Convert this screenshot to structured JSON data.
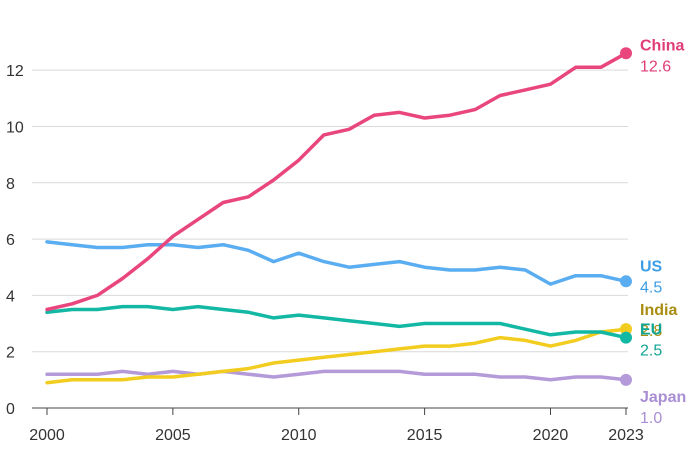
{
  "chart_data": {
    "type": "line",
    "title": "",
    "xlabel": "",
    "ylabel": "",
    "xlim": [
      2000,
      2023
    ],
    "ylim": [
      0,
      13
    ],
    "grid": "horizontal",
    "legend": "end-labels",
    "x": [
      2000,
      2001,
      2002,
      2003,
      2004,
      2005,
      2006,
      2007,
      2008,
      2009,
      2010,
      2011,
      2012,
      2013,
      2014,
      2015,
      2016,
      2017,
      2018,
      2019,
      2020,
      2021,
      2022,
      2023
    ],
    "x_ticks": [
      {
        "v": 2000,
        "label": "2000"
      },
      {
        "v": 2005,
        "label": "2005"
      },
      {
        "v": 2010,
        "label": "2010"
      },
      {
        "v": 2015,
        "label": "2015"
      },
      {
        "v": 2020,
        "label": "2020"
      },
      {
        "v": 2023,
        "label": "2023"
      }
    ],
    "y_ticks": [
      {
        "v": 0,
        "label": "0"
      },
      {
        "v": 2,
        "label": "2"
      },
      {
        "v": 4,
        "label": "4"
      },
      {
        "v": 6,
        "label": "6"
      },
      {
        "v": 8,
        "label": "8"
      },
      {
        "v": 10,
        "label": "10"
      },
      {
        "v": 12,
        "label": "12"
      }
    ],
    "series": [
      {
        "name": "China",
        "end_label": "12.6",
        "color": "#e8467c",
        "values": [
          3.5,
          3.7,
          4.0,
          4.6,
          5.3,
          6.1,
          6.7,
          7.3,
          7.5,
          8.1,
          8.8,
          9.7,
          9.9,
          10.4,
          10.5,
          10.3,
          10.4,
          10.6,
          11.1,
          11.3,
          11.5,
          12.1,
          12.1,
          12.6
        ]
      },
      {
        "name": "US",
        "end_label": "4.5",
        "color": "#5aadf0",
        "values": [
          5.9,
          5.8,
          5.7,
          5.7,
          5.8,
          5.8,
          5.7,
          5.8,
          5.6,
          5.2,
          5.5,
          5.2,
          5.0,
          5.1,
          5.2,
          5.0,
          4.9,
          4.9,
          5.0,
          4.9,
          4.4,
          4.7,
          4.7,
          4.5
        ]
      },
      {
        "name": "India",
        "end_label": "2.8",
        "color": "#f2cd1f",
        "values": [
          0.9,
          1.0,
          1.0,
          1.0,
          1.1,
          1.1,
          1.2,
          1.3,
          1.4,
          1.6,
          1.7,
          1.8,
          1.9,
          2.0,
          2.1,
          2.2,
          2.2,
          2.3,
          2.5,
          2.4,
          2.2,
          2.4,
          2.7,
          2.8
        ]
      },
      {
        "name": "EU",
        "end_label": "2.5",
        "color": "#13b8a5",
        "values": [
          3.4,
          3.5,
          3.5,
          3.6,
          3.6,
          3.5,
          3.6,
          3.5,
          3.4,
          3.2,
          3.3,
          3.2,
          3.1,
          3.0,
          2.9,
          3.0,
          3.0,
          3.0,
          3.0,
          2.8,
          2.6,
          2.7,
          2.7,
          2.5
        ]
      },
      {
        "name": "Japan",
        "end_label": "1.0",
        "color": "#b49ad8",
        "values": [
          1.2,
          1.2,
          1.2,
          1.3,
          1.2,
          1.3,
          1.2,
          1.3,
          1.2,
          1.1,
          1.2,
          1.3,
          1.3,
          1.3,
          1.3,
          1.2,
          1.2,
          1.2,
          1.1,
          1.1,
          1.0,
          1.1,
          1.1,
          1.0
        ]
      }
    ],
    "label_colors": {
      "China": "#e03d78",
      "US": "#3c9ee6",
      "India": "#a88d10",
      "EU": "#12a593",
      "Japan": "#a98ed4"
    }
  }
}
